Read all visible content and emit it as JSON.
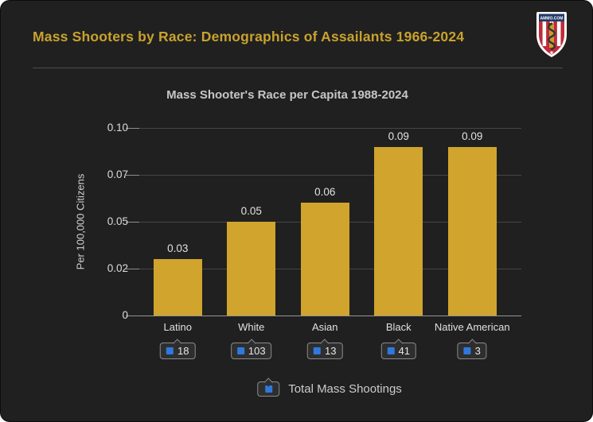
{
  "header": {
    "title": "Mass Shooters by Race: Demographics of Assailants 1966-2024",
    "logo_text": "AMMO.COM"
  },
  "chart_data": {
    "type": "bar",
    "title": "Mass Shooter's Race per Capita 1988-2024",
    "categories": [
      "Latino",
      "White",
      "Asian",
      "Black",
      "Native American"
    ],
    "values": [
      0.03,
      0.05,
      0.06,
      0.09,
      0.09
    ],
    "value_labels": [
      "0.03",
      "0.05",
      "0.06",
      "0.09",
      "0.09"
    ],
    "counts": [
      18,
      103,
      13,
      41,
      3
    ],
    "series_name": "Total Mass Shootings",
    "xlabel": "",
    "ylabel": "Per 100,000 Citizens",
    "ylim": [
      0,
      0.1
    ],
    "y_ticks": [
      "0.10",
      "0.07",
      "0.05",
      "0.02",
      "0"
    ],
    "grid": true,
    "legend_position": "bottom",
    "bar_color": "#d0a42d",
    "count_marker_color": "#2f79dd"
  },
  "colors": {
    "card_background": "#202020",
    "header_title": "#c9a22d",
    "chart_title": "#c6c6c6",
    "gridline": "#454545",
    "axis_line": "#969696",
    "logo_navy": "#203a66",
    "logo_red": "#bf2b3a",
    "logo_gold": "#c59d2e"
  }
}
